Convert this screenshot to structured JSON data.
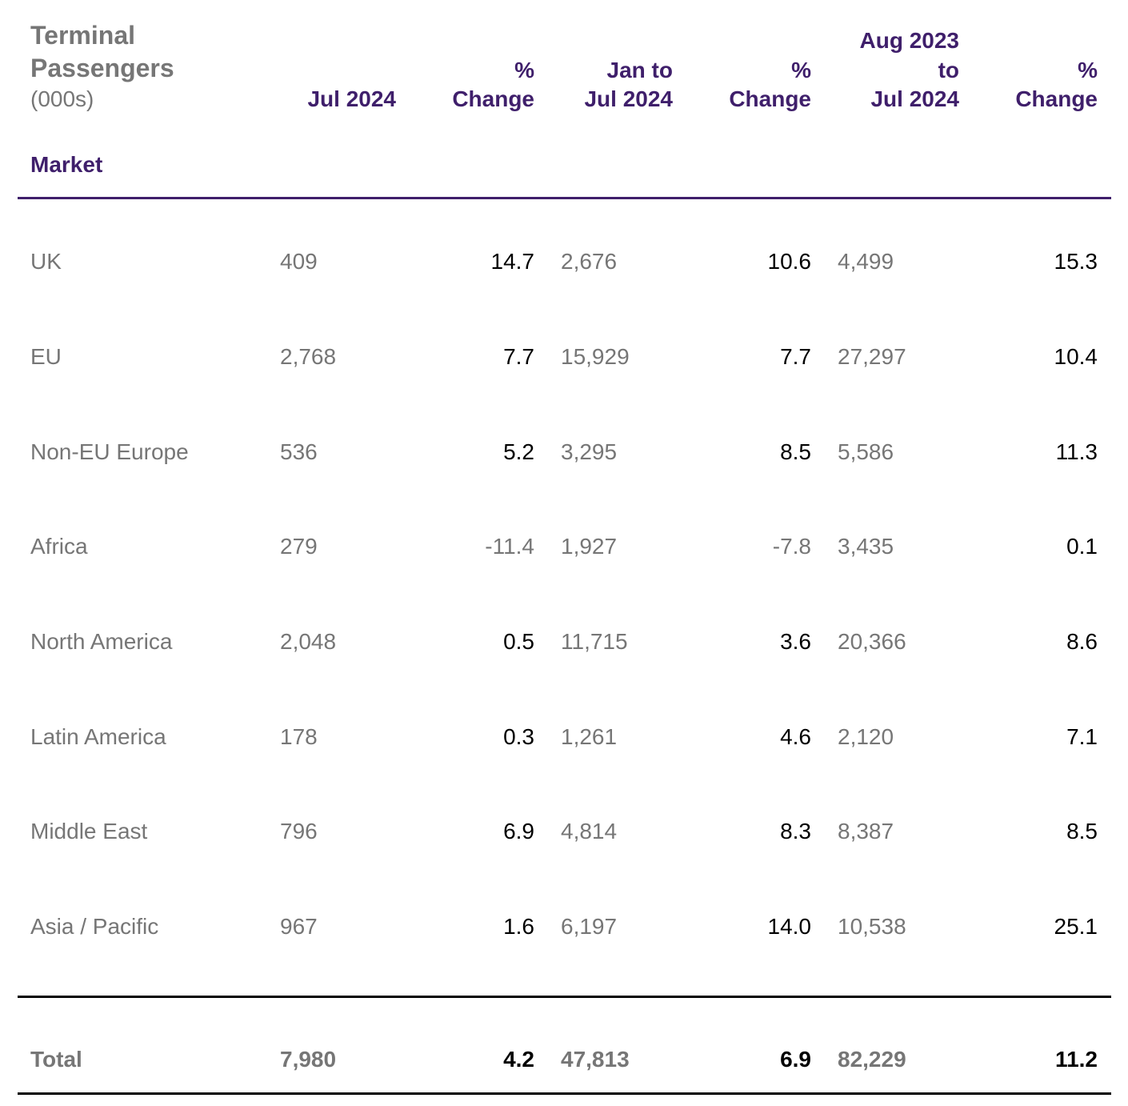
{
  "table": {
    "title_line1": "Terminal",
    "title_line2": "Passengers",
    "units": "(000s)",
    "market_header": "Market",
    "columns": {
      "c1": {
        "line1": "Jul 2024"
      },
      "c2": {
        "line1": "%",
        "line2": "Change"
      },
      "c3": {
        "line1": "Jan to",
        "line2": "Jul 2024"
      },
      "c4": {
        "line1": "%",
        "line2": "Change"
      },
      "c5": {
        "line1": "Aug 2023",
        "line2": "to",
        "line3": "Jul 2024"
      },
      "c6": {
        "line1": "%",
        "line2": "Change"
      }
    },
    "rows": [
      {
        "market": "UK",
        "jul_2024": "409",
        "jul_change": "14.7",
        "ytd": "2,676",
        "ytd_change": "10.6",
        "rolling": "4,499",
        "rolling_change": "15.3"
      },
      {
        "market": "EU",
        "jul_2024": "2,768",
        "jul_change": "7.7",
        "ytd": "15,929",
        "ytd_change": "7.7",
        "rolling": "27,297",
        "rolling_change": "10.4"
      },
      {
        "market": "Non-EU Europe",
        "jul_2024": "536",
        "jul_change": "5.2",
        "ytd": "3,295",
        "ytd_change": "8.5",
        "rolling": "5,586",
        "rolling_change": "11.3"
      },
      {
        "market": "Africa",
        "jul_2024": "279",
        "jul_change": "-11.4",
        "ytd": "1,927",
        "ytd_change": "-7.8",
        "rolling": "3,435",
        "rolling_change": "0.1"
      },
      {
        "market": "North America",
        "jul_2024": "2,048",
        "jul_change": "0.5",
        "ytd": "11,715",
        "ytd_change": "3.6",
        "rolling": "20,366",
        "rolling_change": "8.6"
      },
      {
        "market": "Latin America",
        "jul_2024": "178",
        "jul_change": "0.3",
        "ytd": "1,261",
        "ytd_change": "4.6",
        "rolling": "2,120",
        "rolling_change": "7.1"
      },
      {
        "market": "Middle East",
        "jul_2024": "796",
        "jul_change": "6.9",
        "ytd": "4,814",
        "ytd_change": "8.3",
        "rolling": "8,387",
        "rolling_change": "8.5"
      },
      {
        "market": "Asia / Pacific",
        "jul_2024": "967",
        "jul_change": "1.6",
        "ytd": "6,197",
        "ytd_change": "14.0",
        "rolling": "10,538",
        "rolling_change": "25.1"
      }
    ],
    "total": {
      "market": "Total",
      "jul_2024": "7,980",
      "jul_change": "4.2",
      "ytd": "47,813",
      "ytd_change": "6.9",
      "rolling": "82,229",
      "rolling_change": "11.2"
    },
    "colors": {
      "header_purple": "#3f1f6b",
      "label_gray": "#767676",
      "value_black": "#000000"
    }
  }
}
